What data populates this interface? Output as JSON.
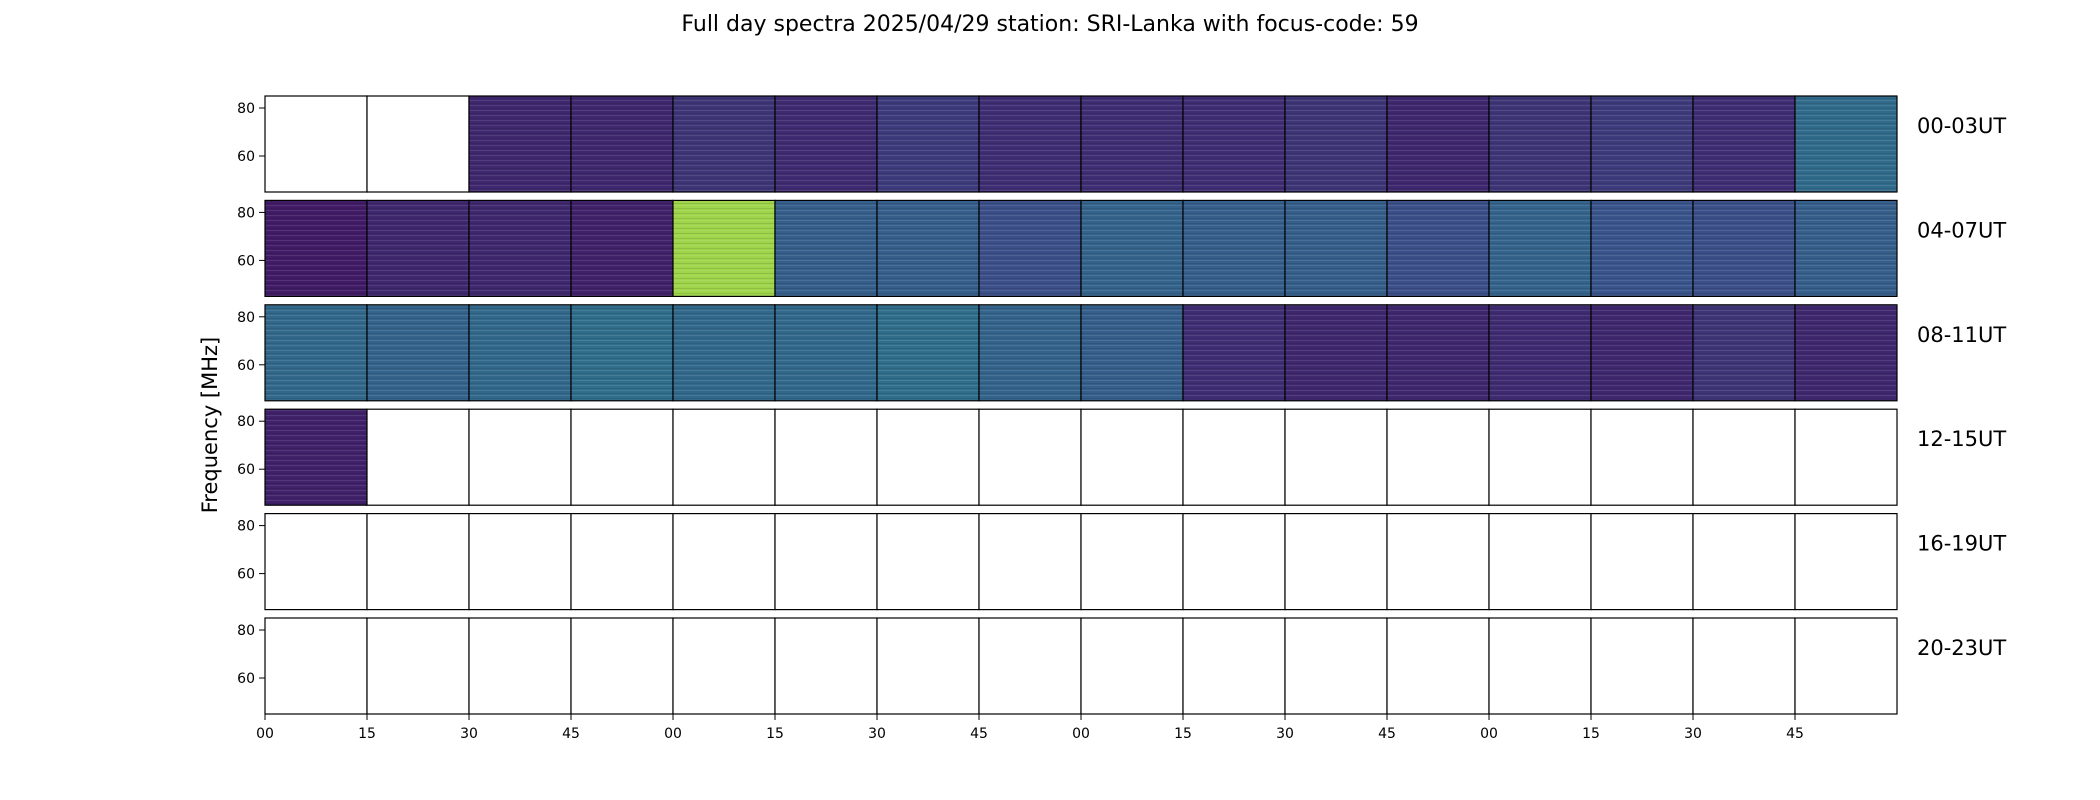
{
  "chart_data": {
    "type": "heatmap",
    "title": "Full day spectra 2025/04/29 station: SRI-Lanka with focus-code: 59",
    "ylabel": "Frequency [MHz]",
    "ylim": [
      45,
      85
    ],
    "yticks": [
      "80",
      "60"
    ],
    "xticks": [
      "00",
      "15",
      "30",
      "45",
      "00",
      "15",
      "30",
      "45",
      "00",
      "15",
      "30",
      "45",
      "00",
      "15",
      "30",
      "45"
    ],
    "colormap": [
      "#440154",
      "#3b528b",
      "#21918c",
      "#5ec962",
      "#fde725"
    ],
    "rows": [
      {
        "label": "00-03UT",
        "panels": [
          {
            "state": "empty"
          },
          {
            "state": "empty"
          },
          {
            "state": "data",
            "level": 0.12
          },
          {
            "state": "data",
            "level": 0.12
          },
          {
            "state": "data",
            "level": 0.16
          },
          {
            "state": "data",
            "level": 0.13
          },
          {
            "state": "data",
            "level": 0.18
          },
          {
            "state": "data",
            "level": 0.14
          },
          {
            "state": "data",
            "level": 0.14
          },
          {
            "state": "data",
            "level": 0.14
          },
          {
            "state": "data",
            "level": 0.16
          },
          {
            "state": "data",
            "level": 0.12
          },
          {
            "state": "data",
            "level": 0.16
          },
          {
            "state": "data",
            "level": 0.18
          },
          {
            "state": "data",
            "level": 0.14
          },
          {
            "state": "data",
            "level": 0.35
          }
        ]
      },
      {
        "label": "04-07UT",
        "panels": [
          {
            "state": "data",
            "level": 0.08
          },
          {
            "state": "data",
            "level": 0.12
          },
          {
            "state": "data",
            "level": 0.12
          },
          {
            "state": "data",
            "level": 0.1
          },
          {
            "state": "data",
            "level": 0.85
          },
          {
            "state": "data",
            "level": 0.3
          },
          {
            "state": "data",
            "level": 0.3
          },
          {
            "state": "data",
            "level": 0.24
          },
          {
            "state": "data",
            "level": 0.32
          },
          {
            "state": "data",
            "level": 0.3
          },
          {
            "state": "data",
            "level": 0.3
          },
          {
            "state": "data",
            "level": 0.24
          },
          {
            "state": "data",
            "level": 0.32
          },
          {
            "state": "data",
            "level": 0.26
          },
          {
            "state": "data",
            "level": 0.24
          },
          {
            "state": "data",
            "level": 0.3
          }
        ]
      },
      {
        "label": "08-11UT",
        "panels": [
          {
            "state": "data",
            "level": 0.34
          },
          {
            "state": "data",
            "level": 0.32
          },
          {
            "state": "data",
            "level": 0.34
          },
          {
            "state": "data",
            "level": 0.36
          },
          {
            "state": "data",
            "level": 0.34
          },
          {
            "state": "data",
            "level": 0.34
          },
          {
            "state": "data",
            "level": 0.36
          },
          {
            "state": "data",
            "level": 0.32
          },
          {
            "state": "data",
            "level": 0.3
          },
          {
            "state": "data",
            "level": 0.14
          },
          {
            "state": "data",
            "level": 0.12
          },
          {
            "state": "data",
            "level": 0.12
          },
          {
            "state": "data",
            "level": 0.13
          },
          {
            "state": "data",
            "level": 0.12
          },
          {
            "state": "data",
            "level": 0.16
          },
          {
            "state": "data",
            "level": 0.12
          }
        ]
      },
      {
        "label": "12-15UT",
        "panels": [
          {
            "state": "data",
            "level": 0.1
          },
          {
            "state": "empty"
          },
          {
            "state": "empty"
          },
          {
            "state": "empty"
          },
          {
            "state": "empty"
          },
          {
            "state": "empty"
          },
          {
            "state": "empty"
          },
          {
            "state": "empty"
          },
          {
            "state": "empty"
          },
          {
            "state": "empty"
          },
          {
            "state": "empty"
          },
          {
            "state": "empty"
          },
          {
            "state": "empty"
          },
          {
            "state": "empty"
          },
          {
            "state": "empty"
          },
          {
            "state": "empty"
          }
        ]
      },
      {
        "label": "16-19UT",
        "panels": [
          {
            "state": "empty"
          },
          {
            "state": "empty"
          },
          {
            "state": "empty"
          },
          {
            "state": "empty"
          },
          {
            "state": "empty"
          },
          {
            "state": "empty"
          },
          {
            "state": "empty"
          },
          {
            "state": "empty"
          },
          {
            "state": "empty"
          },
          {
            "state": "empty"
          },
          {
            "state": "empty"
          },
          {
            "state": "empty"
          },
          {
            "state": "empty"
          },
          {
            "state": "empty"
          },
          {
            "state": "empty"
          },
          {
            "state": "empty"
          }
        ]
      },
      {
        "label": "20-23UT",
        "panels": [
          {
            "state": "empty"
          },
          {
            "state": "empty"
          },
          {
            "state": "empty"
          },
          {
            "state": "empty"
          },
          {
            "state": "empty"
          },
          {
            "state": "empty"
          },
          {
            "state": "empty"
          },
          {
            "state": "empty"
          },
          {
            "state": "empty"
          },
          {
            "state": "empty"
          },
          {
            "state": "empty"
          },
          {
            "state": "empty"
          },
          {
            "state": "empty"
          },
          {
            "state": "empty"
          },
          {
            "state": "empty"
          },
          {
            "state": "empty"
          }
        ]
      }
    ]
  }
}
